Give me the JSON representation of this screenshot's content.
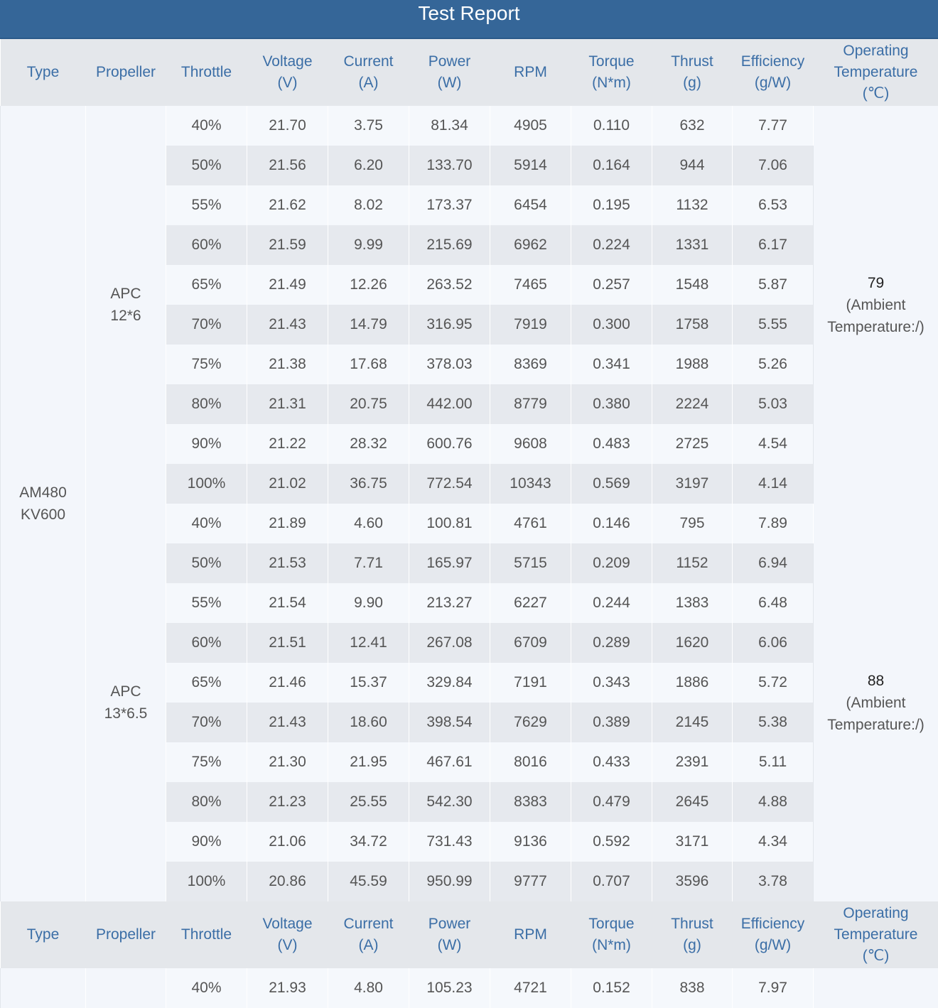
{
  "header": {
    "title": "Test Report"
  },
  "table": {
    "headers": [
      [
        "Type"
      ],
      [
        "Propeller"
      ],
      [
        "Throttle"
      ],
      [
        "Voltage",
        "(V)"
      ],
      [
        "Current",
        "(A)"
      ],
      [
        "Power",
        "(W)"
      ],
      [
        "RPM"
      ],
      [
        "Torque",
        "(N*m)"
      ],
      [
        "Thrust",
        "(g)"
      ],
      [
        "Efficiency",
        "(g/W)"
      ],
      [
        "Operating",
        "Temperature",
        "(℃)"
      ]
    ],
    "sections": [
      {
        "type": [
          "AM480",
          "KV600"
        ],
        "groups": [
          {
            "propeller": [
              "APC",
              "12*6"
            ],
            "temperature": "79",
            "note": "(Ambient Temperature:/)",
            "rows": [
              [
                "40%",
                "21.70",
                "3.75",
                "81.34",
                "4905",
                "0.110",
                "632",
                "7.77"
              ],
              [
                "50%",
                "21.56",
                "6.20",
                "133.70",
                "5914",
                "0.164",
                "944",
                "7.06"
              ],
              [
                "55%",
                "21.62",
                "8.02",
                "173.37",
                "6454",
                "0.195",
                "1132",
                "6.53"
              ],
              [
                "60%",
                "21.59",
                "9.99",
                "215.69",
                "6962",
                "0.224",
                "1331",
                "6.17"
              ],
              [
                "65%",
                "21.49",
                "12.26",
                "263.52",
                "7465",
                "0.257",
                "1548",
                "5.87"
              ],
              [
                "70%",
                "21.43",
                "14.79",
                "316.95",
                "7919",
                "0.300",
                "1758",
                "5.55"
              ],
              [
                "75%",
                "21.38",
                "17.68",
                "378.03",
                "8369",
                "0.341",
                "1988",
                "5.26"
              ],
              [
                "80%",
                "21.31",
                "20.75",
                "442.00",
                "8779",
                "0.380",
                "2224",
                "5.03"
              ],
              [
                "90%",
                "21.22",
                "28.32",
                "600.76",
                "9608",
                "0.483",
                "2725",
                "4.54"
              ],
              [
                "100%",
                "21.02",
                "36.75",
                "772.54",
                "10343",
                "0.569",
                "3197",
                "4.14"
              ]
            ]
          },
          {
            "propeller": [
              "APC",
              "13*6.5"
            ],
            "temperature": "88",
            "note": "(Ambient Temperature:/)",
            "rows": [
              [
                "40%",
                "21.89",
                "4.60",
                "100.81",
                "4761",
                "0.146",
                "795",
                "7.89"
              ],
              [
                "50%",
                "21.53",
                "7.71",
                "165.97",
                "5715",
                "0.209",
                "1152",
                "6.94"
              ],
              [
                "55%",
                "21.54",
                "9.90",
                "213.27",
                "6227",
                "0.244",
                "1383",
                "6.48"
              ],
              [
                "60%",
                "21.51",
                "12.41",
                "267.08",
                "6709",
                "0.289",
                "1620",
                "6.06"
              ],
              [
                "65%",
                "21.46",
                "15.37",
                "329.84",
                "7191",
                "0.343",
                "1886",
                "5.72"
              ],
              [
                "70%",
                "21.43",
                "18.60",
                "398.54",
                "7629",
                "0.389",
                "2145",
                "5.38"
              ],
              [
                "75%",
                "21.30",
                "21.95",
                "467.61",
                "8016",
                "0.433",
                "2391",
                "5.11"
              ],
              [
                "80%",
                "21.23",
                "25.55",
                "542.30",
                "8383",
                "0.479",
                "2645",
                "4.88"
              ],
              [
                "90%",
                "21.06",
                "34.72",
                "731.43",
                "9136",
                "0.592",
                "3171",
                "4.34"
              ],
              [
                "100%",
                "20.86",
                "45.59",
                "950.99",
                "9777",
                "0.707",
                "3596",
                "3.78"
              ]
            ]
          }
        ]
      },
      {
        "groups": [
          {
            "rows": [
              [
                "40%",
                "21.93",
                "4.80",
                "105.23",
                "4721",
                "0.152",
                "838",
                "7.97"
              ]
            ]
          }
        ]
      }
    ]
  }
}
